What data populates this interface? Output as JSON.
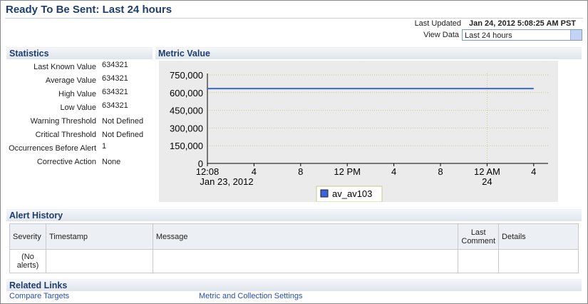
{
  "header": {
    "title": "Ready To Be Sent: Last 24 hours",
    "last_updated_label": "Last Updated",
    "last_updated": "Jan 24, 2012 5:08:25 AM PST",
    "view_data_label": "View Data",
    "view_data_value": "Last 24 hours"
  },
  "statistics": {
    "title": "Statistics",
    "rows": [
      {
        "label": "Last Known Value",
        "value": 634321
      },
      {
        "label": "Average Value",
        "value": 634321
      },
      {
        "label": "High Value",
        "value": 634321
      },
      {
        "label": "Low Value",
        "value": 634321
      },
      {
        "label": "Warning Threshold",
        "value": "Not Defined"
      },
      {
        "label": "Critical Threshold",
        "value": "Not Defined"
      },
      {
        "label": "Occurrences Before Alert",
        "value": 1
      },
      {
        "label": "Corrective Action",
        "value": "None"
      }
    ]
  },
  "chart_data": {
    "type": "line",
    "title": "Metric Value",
    "categories": [
      "12:08",
      "4",
      "8",
      "12 PM",
      "4",
      "8",
      "12 AM",
      "4"
    ],
    "x_sublabels": [
      "Jan 23, 2012",
      null,
      null,
      null,
      null,
      null,
      "24",
      null
    ],
    "series": [
      {
        "name": "av_av103",
        "color": "#3f63d8",
        "values": [
          634321,
          634321,
          634321,
          634321,
          634321,
          634321,
          634321,
          634321
        ]
      }
    ],
    "ylim": [
      0,
      750000
    ],
    "yticks": [
      0,
      {
        "value": 150000,
        "label": "150,000"
      },
      {
        "value": 300000,
        "label": "300,000"
      },
      {
        "value": 450000,
        "label": "450,000"
      },
      {
        "value": 600000,
        "label": "600,000"
      },
      {
        "value": 750000,
        "label": "750,000"
      }
    ],
    "grid": true
  },
  "alert_history": {
    "title": "Alert History",
    "columns": [
      "Severity",
      "Timestamp",
      "Message",
      "Last Comment",
      "Details"
    ],
    "empty_message": "(No alerts)"
  },
  "related_links": {
    "title": "Related Links",
    "links": [
      "Compare Targets",
      "Metric and Collection Settings"
    ]
  }
}
